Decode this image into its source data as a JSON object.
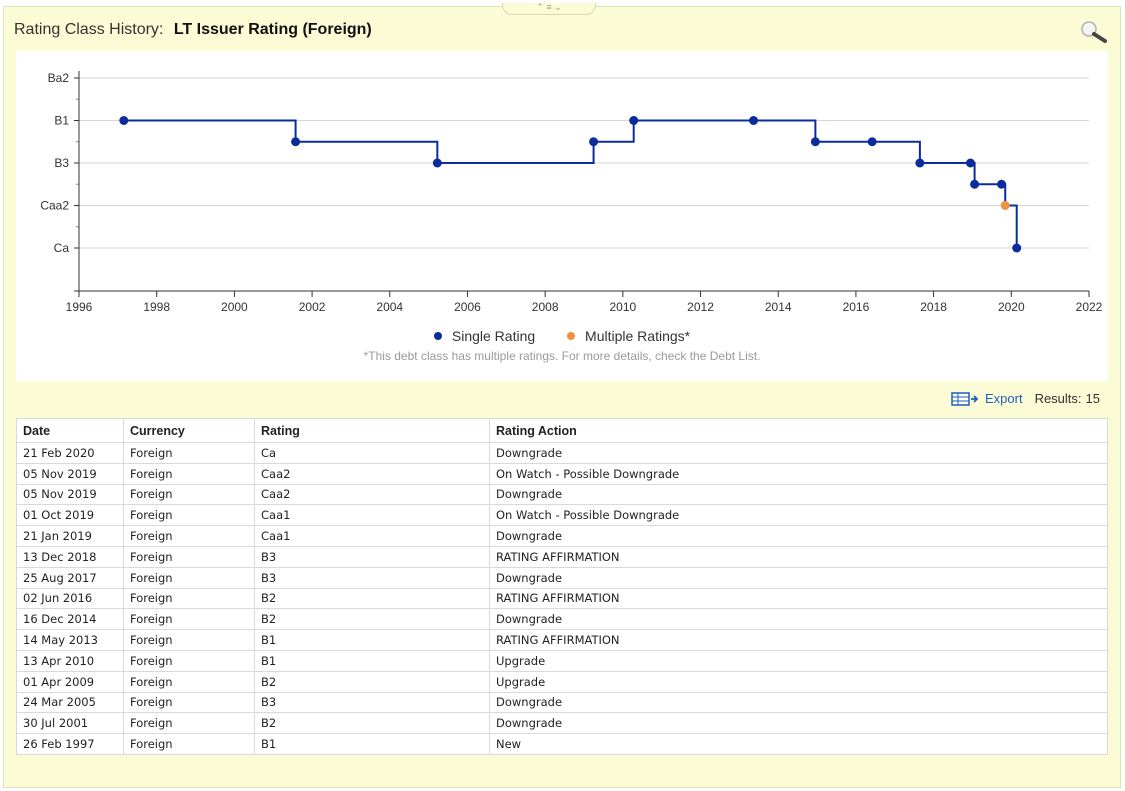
{
  "header": {
    "label": "Rating Class History:",
    "value": "LT Issuer Rating (Foreign)",
    "collapse_glyph": "⌃ ≡ ⌄"
  },
  "chart_data": {
    "type": "line",
    "step": true,
    "x_axis": {
      "min": 1996,
      "max": 2022,
      "ticks": [
        1996,
        1998,
        2000,
        2002,
        2004,
        2006,
        2008,
        2010,
        2012,
        2014,
        2016,
        2018,
        2020,
        2022
      ]
    },
    "y_axis": {
      "scale": [
        "Ca",
        "C",
        "Caa2",
        "Caa1",
        "B3",
        "B2",
        "B1",
        "Ba3",
        "Ba2"
      ],
      "labeled": [
        "Ba2",
        "B1",
        "B3",
        "Caa2",
        "Ca"
      ]
    },
    "series": [
      {
        "name": "Single Rating",
        "color": "#0a2c9c",
        "points": [
          {
            "x": "1997-02-26",
            "y": "B1"
          },
          {
            "x": "2001-07-30",
            "y": "B2"
          },
          {
            "x": "2005-03-24",
            "y": "B3"
          },
          {
            "x": "2009-04-01",
            "y": "B2"
          },
          {
            "x": "2010-04-13",
            "y": "B1"
          },
          {
            "x": "2013-05-14",
            "y": "B1"
          },
          {
            "x": "2014-12-16",
            "y": "B2"
          },
          {
            "x": "2016-06-02",
            "y": "B2"
          },
          {
            "x": "2017-08-25",
            "y": "B3"
          },
          {
            "x": "2018-12-13",
            "y": "B3"
          },
          {
            "x": "2019-01-21",
            "y": "Caa1"
          },
          {
            "x": "2019-10-01",
            "y": "Caa1"
          },
          {
            "x": "2020-02-21",
            "y": "Ca"
          }
        ]
      },
      {
        "name": "Multiple Ratings*",
        "color": "#f0913f",
        "points": [
          {
            "x": "2019-11-05",
            "y": "Caa2"
          }
        ]
      }
    ],
    "footnote": "*This debt class has multiple ratings. For more details, check the Debt List."
  },
  "toolbar": {
    "export_label": "Export",
    "results_label": "Results:",
    "results_count": "15"
  },
  "table": {
    "columns": [
      "Date",
      "Currency",
      "Rating",
      "Rating Action"
    ],
    "rows": [
      [
        "21 Feb 2020",
        "Foreign",
        "Ca",
        "Downgrade"
      ],
      [
        "05 Nov 2019",
        "Foreign",
        "Caa2",
        "On Watch - Possible Downgrade"
      ],
      [
        "05 Nov 2019",
        "Foreign",
        "Caa2",
        "Downgrade"
      ],
      [
        "01 Oct 2019",
        "Foreign",
        "Caa1",
        "On Watch - Possible Downgrade"
      ],
      [
        "21 Jan 2019",
        "Foreign",
        "Caa1",
        "Downgrade"
      ],
      [
        "13 Dec 2018",
        "Foreign",
        "B3",
        "RATING AFFIRMATION"
      ],
      [
        "25 Aug 2017",
        "Foreign",
        "B3",
        "Downgrade"
      ],
      [
        "02 Jun 2016",
        "Foreign",
        "B2",
        "RATING AFFIRMATION"
      ],
      [
        "16 Dec 2014",
        "Foreign",
        "B2",
        "Downgrade"
      ],
      [
        "14 May 2013",
        "Foreign",
        "B1",
        "RATING AFFIRMATION"
      ],
      [
        "13 Apr 2010",
        "Foreign",
        "B1",
        "Upgrade"
      ],
      [
        "01 Apr 2009",
        "Foreign",
        "B2",
        "Upgrade"
      ],
      [
        "24 Mar 2005",
        "Foreign",
        "B3",
        "Downgrade"
      ],
      [
        "30 Jul 2001",
        "Foreign",
        "B2",
        "Downgrade"
      ],
      [
        "26 Feb 1997",
        "Foreign",
        "B1",
        "New"
      ]
    ]
  }
}
